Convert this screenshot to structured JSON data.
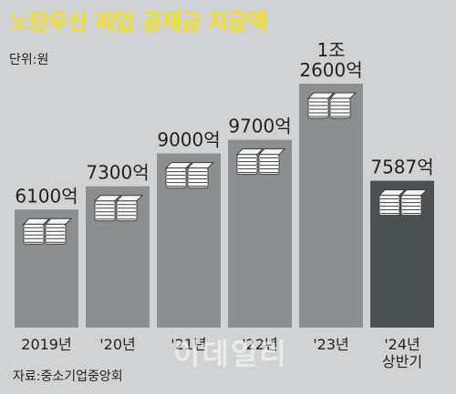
{
  "title": "노란우산 폐업 공제금 지급액",
  "unit_label": "단위:원",
  "source": "자료:중소기업중앙회",
  "watermark": "이데일리",
  "colors": {
    "background": "#d0d2d3",
    "title": "#f2de25",
    "bar": "#8c8f90",
    "bar_last": "#4c5253",
    "text": "#222222"
  },
  "chart_data": {
    "type": "bar",
    "title": "노란우산 폐업 공제금 지급액",
    "ylabel": "단위:원",
    "categories": [
      "2019년",
      "'20년",
      "'21년",
      "'22년",
      "'23년",
      "'24년\n상반기"
    ],
    "values": [
      6100,
      7300,
      9000,
      9700,
      12600,
      7587
    ],
    "value_labels": [
      "6100억",
      "7300억",
      "9000억",
      "9700억",
      "1조\n2600억",
      "7587억"
    ],
    "value_unit": "억원",
    "highlight_last": true,
    "ylim": [
      0,
      13000
    ],
    "grid": false,
    "legend": "none"
  }
}
